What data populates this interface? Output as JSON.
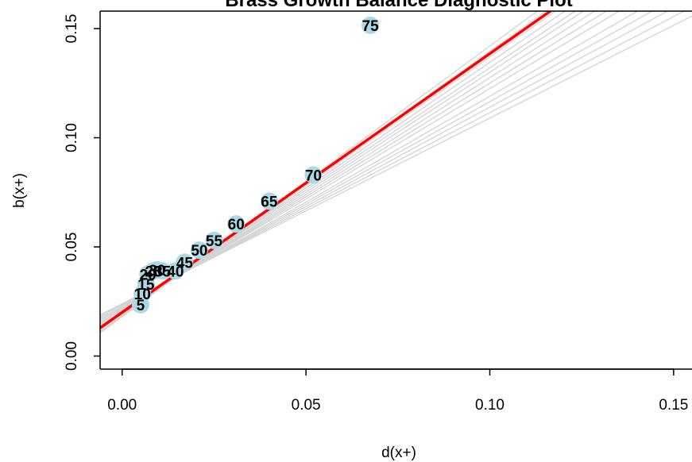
{
  "chart_data": {
    "type": "scatter",
    "title": "Brass Growth Balance Diagnostic Plot",
    "xlabel": "d(x+)",
    "ylabel": "b(x+)",
    "xlim": [
      -0.006,
      0.155
    ],
    "ylim": [
      -0.006,
      0.158
    ],
    "x_ticks": [
      {
        "value": 0.0,
        "label": "0.00"
      },
      {
        "value": 0.05,
        "label": "0.05"
      },
      {
        "value": 0.1,
        "label": "0.10"
      },
      {
        "value": 0.15,
        "label": "0.15"
      }
    ],
    "y_ticks": [
      {
        "value": 0.0,
        "label": "0.00"
      },
      {
        "value": 0.05,
        "label": "0.05"
      },
      {
        "value": 0.1,
        "label": "0.10"
      },
      {
        "value": 0.15,
        "label": "0.15"
      }
    ],
    "points": [
      {
        "label": "5",
        "x": 0.005,
        "y": 0.0235
      },
      {
        "label": "10",
        "x": 0.0055,
        "y": 0.0285
      },
      {
        "label": "15",
        "x": 0.0065,
        "y": 0.033
      },
      {
        "label": "20",
        "x": 0.007,
        "y": 0.0375
      },
      {
        "label": "25",
        "x": 0.0085,
        "y": 0.039
      },
      {
        "label": "30",
        "x": 0.0095,
        "y": 0.0395
      },
      {
        "label": "35",
        "x": 0.011,
        "y": 0.039
      },
      {
        "label": "40",
        "x": 0.0145,
        "y": 0.039
      },
      {
        "label": "45",
        "x": 0.017,
        "y": 0.043
      },
      {
        "label": "50",
        "x": 0.021,
        "y": 0.0485
      },
      {
        "label": "55",
        "x": 0.025,
        "y": 0.053
      },
      {
        "label": "60",
        "x": 0.031,
        "y": 0.0605
      },
      {
        "label": "65",
        "x": 0.04,
        "y": 0.071
      },
      {
        "label": "70",
        "x": 0.052,
        "y": 0.083
      },
      {
        "label": "75",
        "x": 0.0675,
        "y": 0.1515
      }
    ],
    "fit_line": {
      "intercept": 0.02,
      "slope": 1.185
    },
    "bootstrap_lines": [
      {
        "intercept": 0.024,
        "slope": 0.85
      },
      {
        "intercept": 0.0235,
        "slope": 0.88
      },
      {
        "intercept": 0.023,
        "slope": 0.91
      },
      {
        "intercept": 0.0225,
        "slope": 0.94
      },
      {
        "intercept": 0.022,
        "slope": 0.97
      },
      {
        "intercept": 0.0215,
        "slope": 1.01
      },
      {
        "intercept": 0.021,
        "slope": 1.04
      },
      {
        "intercept": 0.0205,
        "slope": 1.07
      },
      {
        "intercept": 0.02,
        "slope": 1.1
      },
      {
        "intercept": 0.02,
        "slope": 1.12
      },
      {
        "intercept": 0.0195,
        "slope": 1.15
      },
      {
        "intercept": 0.019,
        "slope": 1.18
      },
      {
        "intercept": 0.0185,
        "slope": 1.21
      },
      {
        "intercept": 0.018,
        "slope": 1.24
      }
    ],
    "grid": false,
    "colors": {
      "fit": "#ff0000",
      "bootstrap": "#d3d3d3",
      "point_fill": "#add8e6",
      "label": "#000000",
      "axis": "#000000"
    }
  }
}
